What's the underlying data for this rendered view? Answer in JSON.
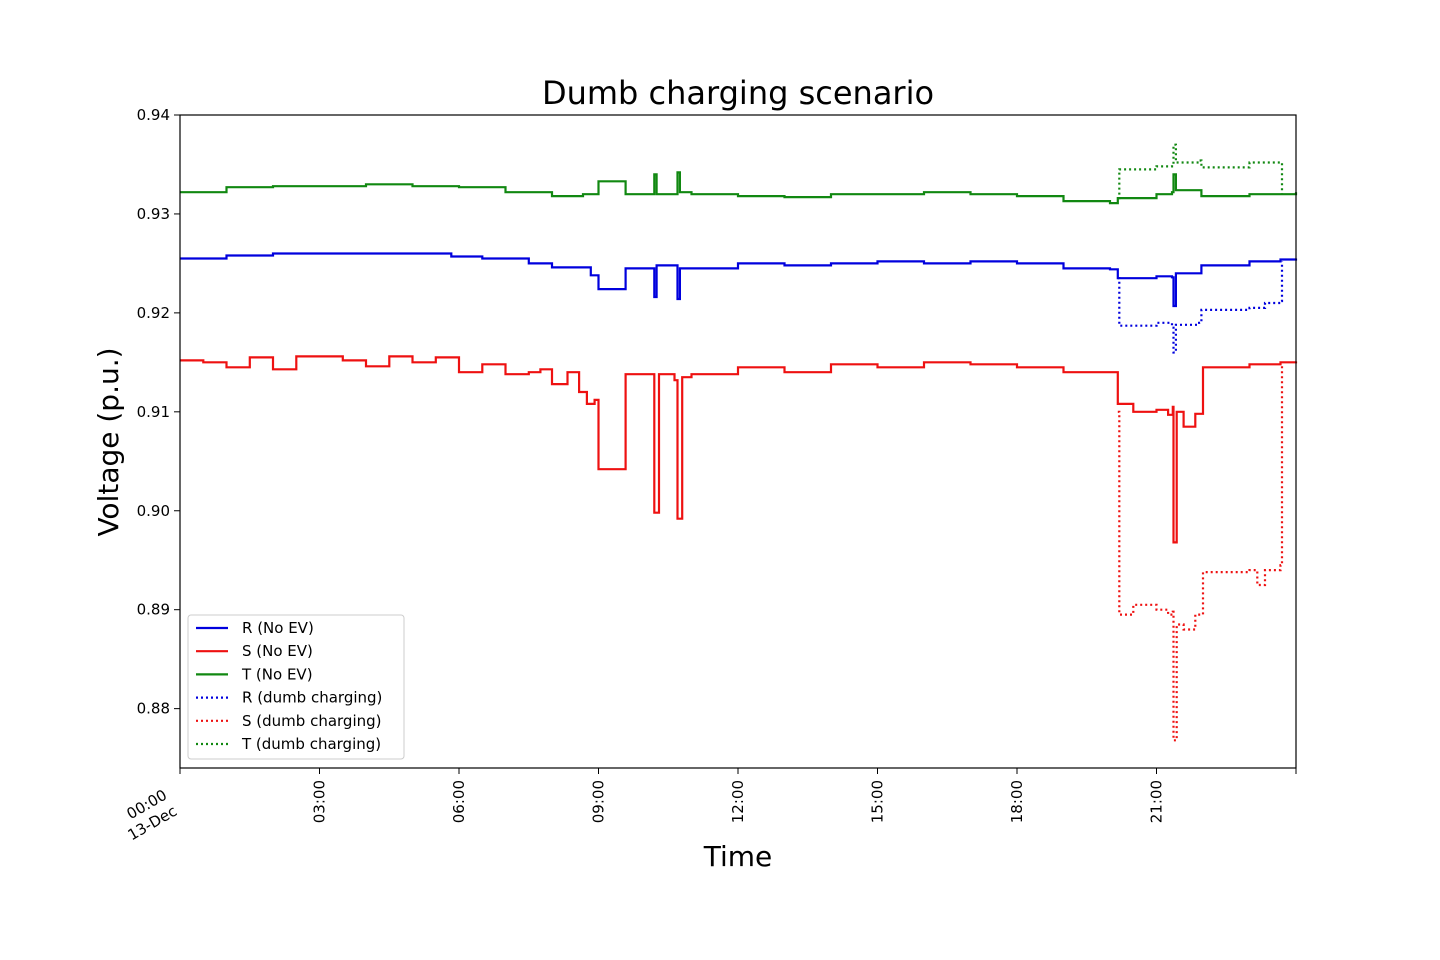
{
  "chart_data": {
    "type": "line",
    "title": "Dumb charging scenario",
    "xlabel": "Time",
    "ylabel": "Voltage (p.u.)",
    "xlim": [
      "2021-12-13 00:00",
      "2021-12-14 00:00"
    ],
    "ylim": [
      0.874,
      0.94
    ],
    "x_ticks": [
      {
        "t": "00:00",
        "label": "00:00",
        "sublabel": "13-Dec"
      },
      {
        "t": "03:00",
        "label": "03:00"
      },
      {
        "t": "06:00",
        "label": "06:00"
      },
      {
        "t": "09:00",
        "label": "09:00"
      },
      {
        "t": "12:00",
        "label": "12:00"
      },
      {
        "t": "15:00",
        "label": "15:00"
      },
      {
        "t": "18:00",
        "label": "18:00"
      },
      {
        "t": "21:00",
        "label": "21:00"
      },
      {
        "t": "24:00",
        "label": ""
      }
    ],
    "y_ticks": [
      {
        "v": 0.88,
        "label": "0.88"
      },
      {
        "v": 0.89,
        "label": "0.89"
      },
      {
        "v": 0.9,
        "label": "0.90"
      },
      {
        "v": 0.91,
        "label": "0.91"
      },
      {
        "v": 0.92,
        "label": "0.92"
      },
      {
        "v": 0.93,
        "label": "0.93"
      },
      {
        "v": 0.94,
        "label": "0.94"
      }
    ],
    "grid": false,
    "legend_position": "lower-left",
    "series": [
      {
        "name": "R (No EV)",
        "color": "#0000dd",
        "style": "solid",
        "points": [
          [
            "00:00",
            0.9255
          ],
          [
            "01:00",
            0.9258
          ],
          [
            "02:00",
            0.926
          ],
          [
            "03:00",
            0.926
          ],
          [
            "04:00",
            0.926
          ],
          [
            "05:00",
            0.926
          ],
          [
            "05:50",
            0.9257
          ],
          [
            "06:30",
            0.9255
          ],
          [
            "07:30",
            0.925
          ],
          [
            "08:00",
            0.9246
          ],
          [
            "08:40",
            0.9246
          ],
          [
            "08:50",
            0.9238
          ],
          [
            "09:00",
            0.9224
          ],
          [
            "09:30",
            0.9224
          ],
          [
            "09:35",
            0.9245
          ],
          [
            "10:10",
            0.9245
          ],
          [
            "10:12",
            0.9216
          ],
          [
            "10:15",
            0.9248
          ],
          [
            "10:40",
            0.9248
          ],
          [
            "10:42",
            0.9214
          ],
          [
            "10:45",
            0.9245
          ],
          [
            "11:00",
            0.9245
          ],
          [
            "12:00",
            0.925
          ],
          [
            "13:00",
            0.9248
          ],
          [
            "14:00",
            0.925
          ],
          [
            "15:00",
            0.9252
          ],
          [
            "16:00",
            0.925
          ],
          [
            "17:00",
            0.9252
          ],
          [
            "18:00",
            0.925
          ],
          [
            "19:00",
            0.9245
          ],
          [
            "20:00",
            0.9244
          ],
          [
            "20:10",
            0.9235
          ],
          [
            "21:00",
            0.9237
          ],
          [
            "21:20",
            0.9236
          ],
          [
            "21:22",
            0.9207
          ],
          [
            "21:25",
            0.924
          ],
          [
            "21:55",
            0.924
          ],
          [
            "21:58",
            0.9248
          ],
          [
            "23:00",
            0.9252
          ],
          [
            "23:40",
            0.9254
          ],
          [
            "24:00",
            0.9255
          ]
        ]
      },
      {
        "name": "S (No EV)",
        "color": "#ee1111",
        "style": "solid",
        "points": [
          [
            "00:00",
            0.9152
          ],
          [
            "00:30",
            0.915
          ],
          [
            "01:00",
            0.9145
          ],
          [
            "01:30",
            0.9155
          ],
          [
            "02:00",
            0.9143
          ],
          [
            "02:30",
            0.9156
          ],
          [
            "03:00",
            0.9156
          ],
          [
            "03:30",
            0.9152
          ],
          [
            "04:00",
            0.9146
          ],
          [
            "04:30",
            0.9156
          ],
          [
            "05:00",
            0.915
          ],
          [
            "05:30",
            0.9155
          ],
          [
            "06:00",
            0.914
          ],
          [
            "06:30",
            0.9148
          ],
          [
            "07:00",
            0.9138
          ],
          [
            "07:30",
            0.914
          ],
          [
            "07:45",
            0.9143
          ],
          [
            "08:00",
            0.9128
          ],
          [
            "08:20",
            0.914
          ],
          [
            "08:35",
            0.912
          ],
          [
            "08:45",
            0.9108
          ],
          [
            "08:55",
            0.9112
          ],
          [
            "09:00",
            0.9042
          ],
          [
            "09:30",
            0.9042
          ],
          [
            "09:35",
            0.9138
          ],
          [
            "10:05",
            0.9138
          ],
          [
            "10:12",
            0.8998
          ],
          [
            "10:18",
            0.9138
          ],
          [
            "10:38",
            0.9132
          ],
          [
            "10:42",
            0.8992
          ],
          [
            "10:48",
            0.9135
          ],
          [
            "11:00",
            0.9138
          ],
          [
            "12:00",
            0.9145
          ],
          [
            "13:00",
            0.914
          ],
          [
            "14:00",
            0.9148
          ],
          [
            "15:00",
            0.9145
          ],
          [
            "16:00",
            0.915
          ],
          [
            "17:00",
            0.9148
          ],
          [
            "18:00",
            0.9145
          ],
          [
            "19:00",
            0.914
          ],
          [
            "20:00",
            0.914
          ],
          [
            "20:10",
            0.9108
          ],
          [
            "20:30",
            0.91
          ],
          [
            "21:00",
            0.9102
          ],
          [
            "21:15",
            0.9097
          ],
          [
            "21:21",
            0.9105
          ],
          [
            "21:22",
            0.8968
          ],
          [
            "21:26",
            0.91
          ],
          [
            "21:35",
            0.9085
          ],
          [
            "21:50",
            0.9098
          ],
          [
            "22:00",
            0.9145
          ],
          [
            "23:00",
            0.9148
          ],
          [
            "23:40",
            0.915
          ],
          [
            "24:00",
            0.9151
          ]
        ]
      },
      {
        "name": "T (No EV)",
        "color": "#118811",
        "style": "solid",
        "points": [
          [
            "00:00",
            0.9322
          ],
          [
            "01:00",
            0.9327
          ],
          [
            "02:00",
            0.9328
          ],
          [
            "03:00",
            0.9328
          ],
          [
            "04:00",
            0.933
          ],
          [
            "05:00",
            0.9328
          ],
          [
            "06:00",
            0.9327
          ],
          [
            "07:00",
            0.9322
          ],
          [
            "08:00",
            0.9318
          ],
          [
            "08:40",
            0.932
          ],
          [
            "09:00",
            0.9333
          ],
          [
            "09:30",
            0.9333
          ],
          [
            "09:35",
            0.932
          ],
          [
            "10:10",
            0.932
          ],
          [
            "10:12",
            0.934
          ],
          [
            "10:15",
            0.932
          ],
          [
            "10:40",
            0.932
          ],
          [
            "10:42",
            0.9342
          ],
          [
            "10:45",
            0.9322
          ],
          [
            "11:00",
            0.932
          ],
          [
            "12:00",
            0.9318
          ],
          [
            "13:00",
            0.9317
          ],
          [
            "14:00",
            0.932
          ],
          [
            "15:00",
            0.932
          ],
          [
            "16:00",
            0.9322
          ],
          [
            "17:00",
            0.932
          ],
          [
            "18:00",
            0.9318
          ],
          [
            "19:00",
            0.9313
          ],
          [
            "20:00",
            0.9311
          ],
          [
            "20:10",
            0.9316
          ],
          [
            "21:00",
            0.932
          ],
          [
            "21:20",
            0.9322
          ],
          [
            "21:22",
            0.934
          ],
          [
            "21:25",
            0.9324
          ],
          [
            "21:55",
            0.9324
          ],
          [
            "21:58",
            0.9318
          ],
          [
            "23:00",
            0.932
          ],
          [
            "24:00",
            0.9322
          ]
        ]
      },
      {
        "name": "R (dumb charging)",
        "color": "#0000dd",
        "style": "dotted",
        "points": [
          [
            "20:10",
            0.9235
          ],
          [
            "20:12",
            0.9187
          ],
          [
            "21:00",
            0.919
          ],
          [
            "21:20",
            0.9185
          ],
          [
            "21:22",
            0.916
          ],
          [
            "21:25",
            0.9188
          ],
          [
            "21:55",
            0.919
          ],
          [
            "21:58",
            0.9203
          ],
          [
            "23:00",
            0.9205
          ],
          [
            "23:20",
            0.921
          ],
          [
            "23:40",
            0.9212
          ],
          [
            "23:42",
            0.9252
          ]
        ]
      },
      {
        "name": "S (dumb charging)",
        "color": "#ee1111",
        "style": "dotted",
        "points": [
          [
            "20:10",
            0.91
          ],
          [
            "20:12",
            0.8895
          ],
          [
            "20:30",
            0.8905
          ],
          [
            "21:00",
            0.89
          ],
          [
            "21:15",
            0.8895
          ],
          [
            "21:21",
            0.8898
          ],
          [
            "21:22",
            0.8768
          ],
          [
            "21:26",
            0.8885
          ],
          [
            "21:35",
            0.888
          ],
          [
            "21:50",
            0.8895
          ],
          [
            "22:00",
            0.8938
          ],
          [
            "23:00",
            0.894
          ],
          [
            "23:10",
            0.8925
          ],
          [
            "23:20",
            0.894
          ],
          [
            "23:40",
            0.8945
          ],
          [
            "23:42",
            0.9148
          ]
        ]
      },
      {
        "name": "T (dumb charging)",
        "color": "#118811",
        "style": "dotted",
        "points": [
          [
            "20:10",
            0.9316
          ],
          [
            "20:12",
            0.9345
          ],
          [
            "21:00",
            0.9348
          ],
          [
            "21:20",
            0.935
          ],
          [
            "21:22",
            0.937
          ],
          [
            "21:25",
            0.9352
          ],
          [
            "21:55",
            0.9354
          ],
          [
            "21:58",
            0.9347
          ],
          [
            "23:00",
            0.9352
          ],
          [
            "23:40",
            0.9352
          ],
          [
            "23:42",
            0.932
          ]
        ]
      }
    ]
  }
}
